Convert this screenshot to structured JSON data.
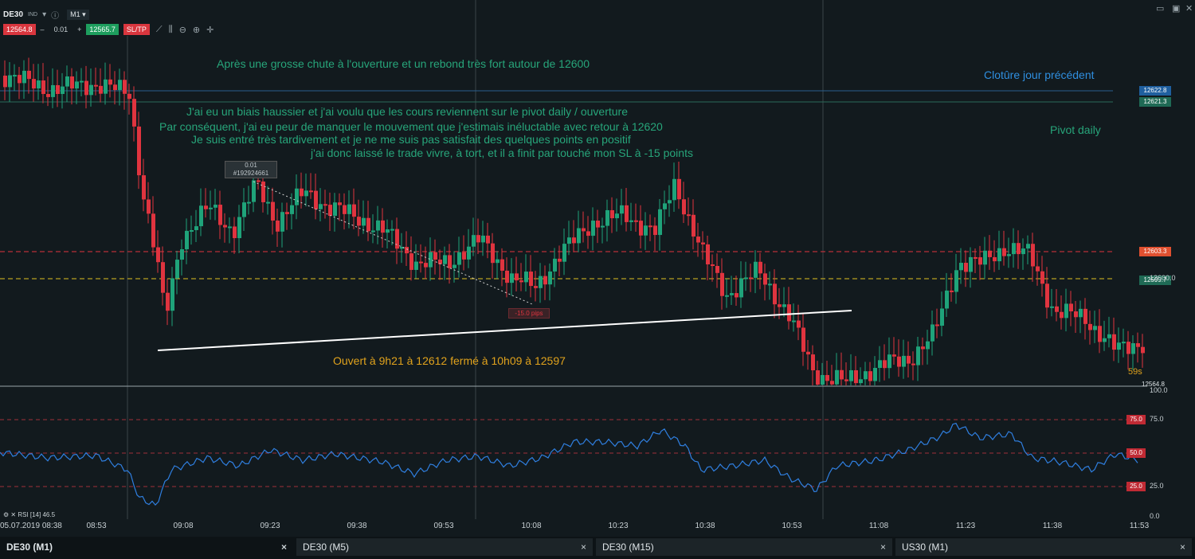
{
  "toolbar": {
    "symbol": "DE30",
    "instrument_type": "IND",
    "timeframe": "M1",
    "sell_price": "12564.8",
    "quantity": "0.01",
    "buy_price": "12565.7",
    "sltp_label": "SL/TP"
  },
  "annotations": {
    "line1": "Après une grosse chute à l'ouverture et un rebond très fort autour de 12600",
    "line2": "J'ai eu un biais haussier et j'ai voulu que les cours reviennent sur le pivot daily / ouverture",
    "line3": "Par conséquent, j'ai eu peur de manquer le mouvement que j'estimais inéluctable avec retour à 12620",
    "line4": "Je suis entré très tardivement et je ne me suis pas satisfait des quelques points en positif",
    "line5": "j'ai donc laissé le trade vivre, à tort, et il a finit par touché mon SL à -15 points",
    "close_prev": "Clotûre jour précédent",
    "pivot": "Pivot daily",
    "trade_info": "Ouvert à 9h21 à 12612 fermé à 10h09 à 12597"
  },
  "trade": {
    "label_qty": "0.01",
    "label_id": "#192924661",
    "result": "-15.0 pips"
  },
  "price_labels": {
    "close_prev": "12622.8",
    "pivot": "12621.3",
    "sl_line": "12603.3",
    "current": "12599.7",
    "axis_12600": "12600.0",
    "bid": "12564.8"
  },
  "countdown": "59s",
  "rsi": {
    "label": "RSI [14] 46.5",
    "levels": [
      "100.0",
      "75.0",
      "50.0",
      "25.0",
      "0.0"
    ],
    "badge75": "75.0",
    "badge50": "50.0",
    "badge25": "25.0"
  },
  "time_axis": {
    "start": "05.07.2019 08:38",
    "labels": [
      "08:53",
      "09:08",
      "09:23",
      "09:38",
      "09:53",
      "10:08",
      "10:23",
      "10:38",
      "10:53",
      "11:08",
      "11:23",
      "11:38",
      "11:53"
    ]
  },
  "tabs": [
    {
      "label": "DE30 (M1)",
      "close": "×"
    },
    {
      "label": "DE30 (M5)",
      "close": "×"
    },
    {
      "label": "DE30 (M15)",
      "close": "×"
    },
    {
      "label": "US30 (M1)",
      "close": "×"
    }
  ],
  "colors": {
    "bull": "#1fa37a",
    "bear": "#e0343f",
    "background": "#121a1e",
    "close_line": "#2b5f8f",
    "pivot_line": "#2a6a5a",
    "sl_line": "#e0343f",
    "current_line": "#e0c020",
    "rsi_line": "#2f7fe0"
  }
}
